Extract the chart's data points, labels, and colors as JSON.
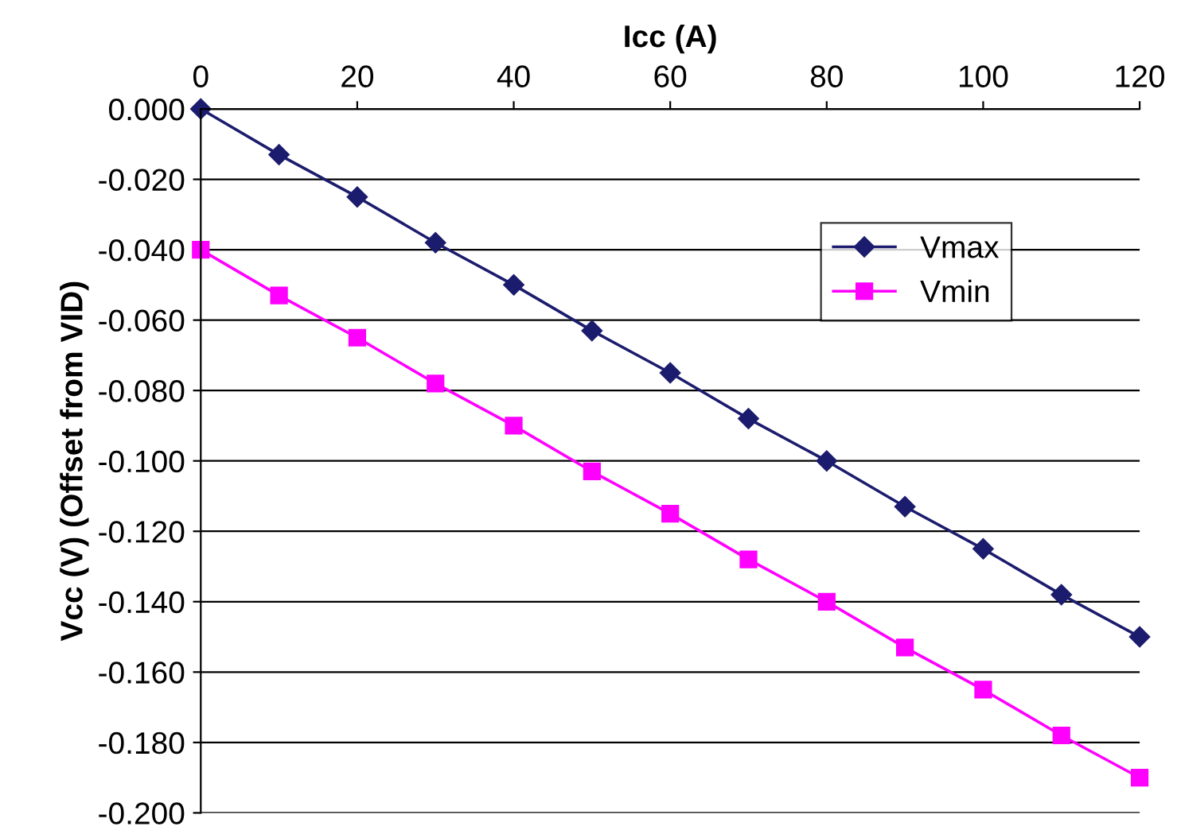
{
  "chart_data": {
    "type": "line",
    "xlabel": "Icc (A)",
    "ylabel": "Vcc (V) (Offset from VID)",
    "x": [
      0,
      10,
      20,
      30,
      40,
      50,
      60,
      70,
      80,
      90,
      100,
      110,
      120
    ],
    "series": [
      {
        "name": "Vmax",
        "color": "#1c1c6e",
        "marker": "diamond",
        "values": [
          0,
          -0.013,
          -0.025,
          -0.038,
          -0.05,
          -0.063,
          -0.075,
          -0.088,
          -0.1,
          -0.113,
          -0.125,
          -0.138,
          -0.15
        ]
      },
      {
        "name": "Vmin",
        "color": "#ff00ff",
        "marker": "square",
        "values": [
          -0.04,
          -0.053,
          -0.065,
          -0.078,
          -0.09,
          -0.103,
          -0.115,
          -0.128,
          -0.14,
          -0.153,
          -0.165,
          -0.178,
          -0.19
        ]
      }
    ],
    "xlim": [
      0,
      120
    ],
    "xticks": [
      0,
      20,
      40,
      60,
      80,
      100,
      120
    ],
    "ylim": [
      -0.2,
      0
    ],
    "yticks": [
      {
        "value": 0,
        "label": "0.000"
      },
      {
        "value": -0.02,
        "label": "-0.020"
      },
      {
        "value": -0.04,
        "label": "-0.040"
      },
      {
        "value": -0.06,
        "label": "-0.060"
      },
      {
        "value": -0.08,
        "label": "-0.080"
      },
      {
        "value": -0.1,
        "label": "-0.100"
      },
      {
        "value": -0.12,
        "label": "-0.120"
      },
      {
        "value": -0.14,
        "label": "-0.140"
      },
      {
        "value": -0.16,
        "label": "-0.160"
      },
      {
        "value": -0.18,
        "label": "-0.180"
      },
      {
        "value": -0.2,
        "label": "-0.200"
      }
    ],
    "grid": "y",
    "legend": "top right",
    "line_style": "solid"
  }
}
